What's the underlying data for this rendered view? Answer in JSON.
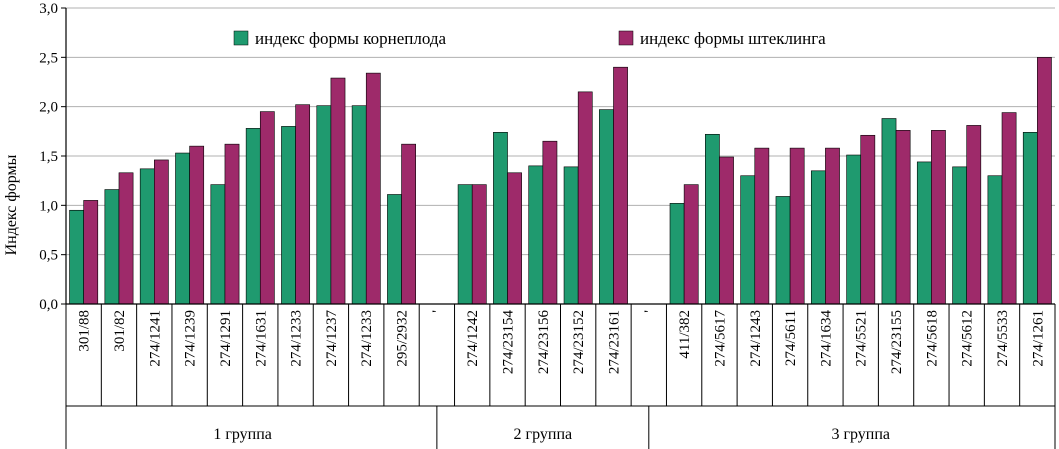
{
  "chart_data": {
    "type": "bar",
    "ylabel": "Индекс формы",
    "ylim": [
      0,
      3.0
    ],
    "yticks": [
      "0,0",
      "0,5",
      "1,0",
      "1,5",
      "2,0",
      "2,5",
      "3,0"
    ],
    "grid": true,
    "legend_position": "top",
    "colors": {
      "root": "#1f9a6f",
      "cutting": "#9e2a6a"
    },
    "series": [
      {
        "name": "индекс формы корнеплода",
        "key": "root"
      },
      {
        "name": "индекс формы штеклинга",
        "key": "cutting"
      }
    ],
    "categories": [
      "301/88",
      "301/82",
      "274/1241",
      "274/1239",
      "274/1291",
      "274/1631",
      "274/1233",
      "274/1237",
      "274/1233",
      "295/2932",
      "",
      "274/1242",
      "274/23154",
      "274/23156",
      "274/23152",
      "274/23161",
      "",
      "411/382",
      "274/5617",
      "274/1243",
      "274/5611",
      "274/1634",
      "274/5521",
      "274/23155",
      "274/5618",
      "274/5612",
      "274/5533",
      "274/1261"
    ],
    "root_values": [
      0.95,
      1.16,
      1.37,
      1.53,
      1.21,
      1.78,
      1.8,
      2.01,
      2.01,
      1.11,
      null,
      1.21,
      1.74,
      1.4,
      1.39,
      1.97,
      null,
      1.02,
      1.72,
      1.3,
      1.09,
      1.35,
      1.51,
      1.88,
      1.44,
      1.39,
      1.3,
      1.74
    ],
    "cutting_values": [
      1.05,
      1.33,
      1.46,
      1.6,
      1.62,
      1.95,
      2.02,
      2.29,
      2.34,
      1.62,
      null,
      1.21,
      1.33,
      1.65,
      2.15,
      2.4,
      null,
      1.21,
      1.49,
      1.58,
      1.58,
      1.58,
      1.71,
      1.76,
      1.76,
      1.81,
      1.94,
      2.5
    ],
    "groups": [
      {
        "label": "1 группа",
        "start": 0,
        "end": 9
      },
      {
        "label": "2 группа",
        "start": 11,
        "end": 15
      },
      {
        "label": "3 группа",
        "start": 17,
        "end": 27
      }
    ],
    "separator_mark": "'"
  }
}
